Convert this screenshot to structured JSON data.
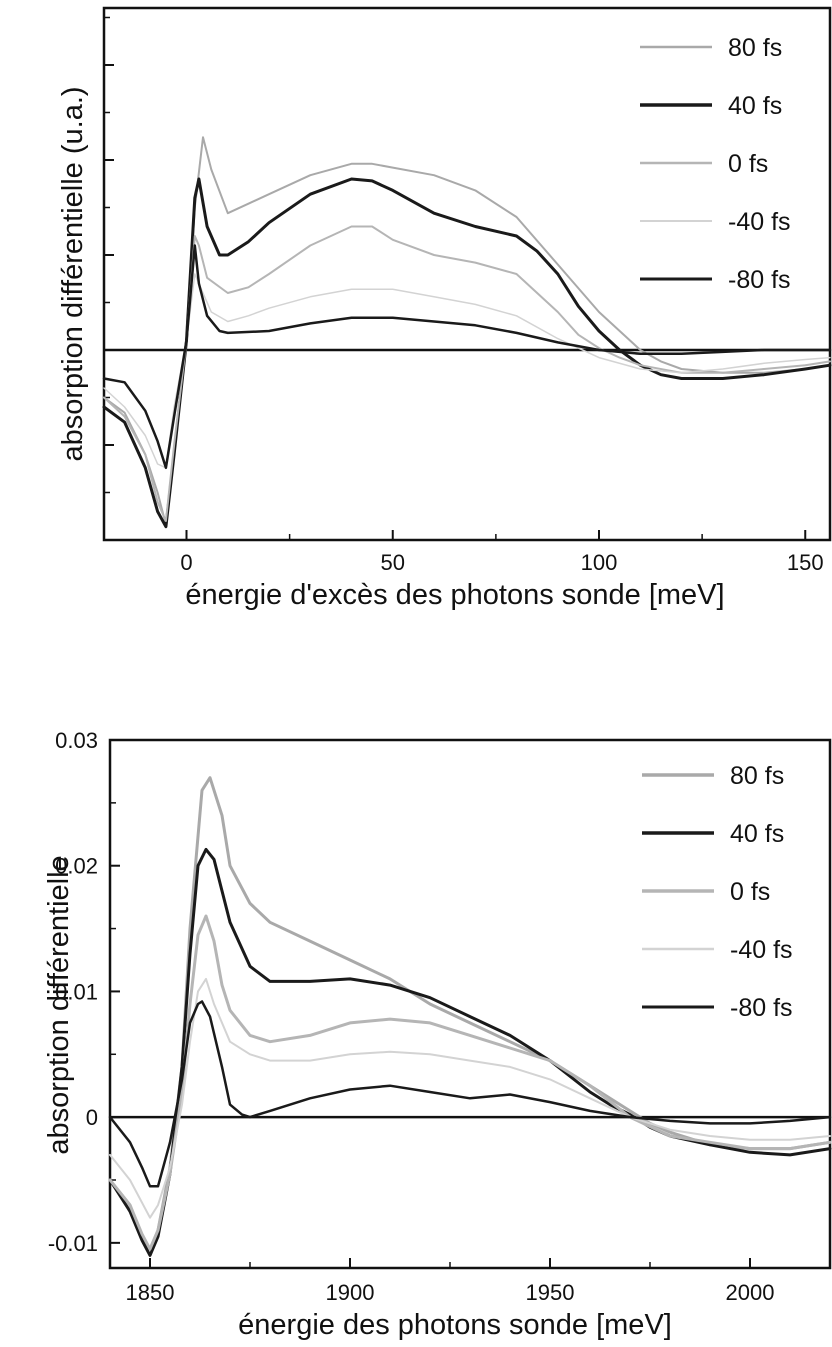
{
  "chart_data": [
    {
      "type": "line",
      "title": "",
      "xlabel": "énergie d'excès des photons sonde [meV]",
      "ylabel": "absorption différentielle (u.a.)",
      "xlim": [
        -20,
        156
      ],
      "ylim": [
        -1.0,
        1.8
      ],
      "x_ticks": [
        0,
        50,
        100,
        150
      ],
      "x_tick_labels": [
        "0",
        "50",
        "100",
        "150"
      ],
      "y_ticks": [
        -0.5,
        0,
        0.5,
        1.0,
        1.5
      ],
      "y_tick_labels": [
        "",
        "",
        "",
        "",
        ""
      ],
      "y_scale_note": "arbitrary units, no numeric tick labels",
      "zero_line": 0,
      "grid": false,
      "legend_position": "top-right",
      "series": [
        {
          "name": "80 fs",
          "color": "#a9a9a9",
          "width": 2,
          "x": [
            -20,
            -15,
            -10,
            -7,
            -5,
            -3,
            0,
            2,
            4,
            6,
            10,
            15,
            20,
            30,
            40,
            45,
            50,
            60,
            70,
            80,
            90,
            100,
            110,
            115,
            120,
            130,
            140,
            150,
            156
          ],
          "y": [
            -0.25,
            -0.33,
            -0.55,
            -0.75,
            -0.92,
            -0.55,
            0.05,
            0.75,
            1.12,
            0.95,
            0.72,
            0.77,
            0.82,
            0.92,
            0.98,
            0.98,
            0.96,
            0.92,
            0.84,
            0.7,
            0.45,
            0.2,
            0.0,
            -0.06,
            -0.1,
            -0.12,
            -0.12,
            -0.1,
            -0.08
          ]
        },
        {
          "name": "40 fs",
          "color": "#1a1a1a",
          "width": 3,
          "x": [
            -20,
            -15,
            -10,
            -7,
            -5,
            -3,
            0,
            2,
            3,
            5,
            8,
            10,
            15,
            20,
            30,
            40,
            45,
            50,
            60,
            70,
            80,
            85,
            90,
            95,
            100,
            105,
            110,
            115,
            120,
            130,
            140,
            150,
            156
          ],
          "y": [
            -0.3,
            -0.38,
            -0.62,
            -0.85,
            -0.93,
            -0.55,
            0.05,
            0.8,
            0.9,
            0.65,
            0.5,
            0.5,
            0.57,
            0.67,
            0.82,
            0.9,
            0.89,
            0.84,
            0.72,
            0.65,
            0.6,
            0.52,
            0.4,
            0.23,
            0.1,
            0.0,
            -0.08,
            -0.13,
            -0.15,
            -0.15,
            -0.13,
            -0.1,
            -0.08
          ]
        },
        {
          "name": "0 fs",
          "color": "#b5b5b5",
          "width": 2,
          "x": [
            -20,
            -15,
            -10,
            -7,
            -5,
            -3,
            0,
            2,
            3,
            5,
            10,
            15,
            20,
            30,
            40,
            45,
            50,
            60,
            70,
            80,
            90,
            95,
            100,
            105,
            110,
            120,
            130,
            140,
            150,
            156
          ],
          "y": [
            -0.25,
            -0.35,
            -0.55,
            -0.8,
            -0.9,
            -0.5,
            0.05,
            0.6,
            0.55,
            0.38,
            0.3,
            0.33,
            0.4,
            0.55,
            0.65,
            0.65,
            0.58,
            0.5,
            0.46,
            0.4,
            0.2,
            0.08,
            0.01,
            -0.04,
            -0.08,
            -0.12,
            -0.12,
            -0.1,
            -0.08,
            -0.06
          ]
        },
        {
          "name": "-40 fs",
          "color": "#d3d3d3",
          "width": 1.5,
          "x": [
            -20,
            -15,
            -10,
            -7,
            -5,
            -3,
            0,
            2,
            4,
            6,
            10,
            15,
            20,
            30,
            40,
            50,
            60,
            70,
            80,
            90,
            100,
            110,
            120,
            130,
            140,
            150,
            156
          ],
          "y": [
            -0.2,
            -0.3,
            -0.45,
            -0.6,
            -0.62,
            -0.3,
            0.05,
            0.4,
            0.3,
            0.2,
            0.15,
            0.18,
            0.22,
            0.28,
            0.32,
            0.32,
            0.28,
            0.24,
            0.18,
            0.06,
            -0.04,
            -0.1,
            -0.12,
            -0.1,
            -0.07,
            -0.05,
            -0.04
          ]
        },
        {
          "name": "-80 fs",
          "color": "#1a1a1a",
          "width": 2.5,
          "x": [
            -20,
            -15,
            -10,
            -7,
            -5,
            -3,
            0,
            2,
            3,
            5,
            8,
            10,
            20,
            30,
            40,
            50,
            60,
            70,
            80,
            90,
            100,
            110,
            120,
            130,
            140,
            150,
            156
          ],
          "y": [
            -0.15,
            -0.17,
            -0.32,
            -0.48,
            -0.62,
            -0.35,
            0.05,
            0.55,
            0.35,
            0.18,
            0.1,
            0.09,
            0.1,
            0.14,
            0.17,
            0.17,
            0.15,
            0.13,
            0.09,
            0.04,
            0.0,
            -0.02,
            -0.02,
            -0.01,
            0.0,
            0.0,
            0.0
          ]
        }
      ]
    },
    {
      "type": "line",
      "title": "",
      "xlabel": "énergie des photons sonde [meV]",
      "ylabel": "absorption différentielle",
      "xlim": [
        1840,
        2020
      ],
      "ylim": [
        -0.012,
        0.03
      ],
      "x_ticks": [
        1850,
        1900,
        1950,
        2000
      ],
      "x_tick_labels": [
        "1850",
        "1900",
        "1950",
        "2000"
      ],
      "y_ticks": [
        -0.01,
        0,
        0.01,
        0.02,
        0.03
      ],
      "y_tick_labels": [
        "-0.01",
        "0",
        "0.01",
        "0.02",
        "0.03"
      ],
      "zero_line": 0,
      "grid": false,
      "legend_position": "top-right",
      "series": [
        {
          "name": "80 fs",
          "color": "#a9a9a9",
          "width": 3,
          "x": [
            1840,
            1845,
            1848,
            1850,
            1852,
            1855,
            1858,
            1860,
            1863,
            1865,
            1868,
            1870,
            1875,
            1880,
            1890,
            1900,
            1910,
            1920,
            1930,
            1940,
            1950,
            1960,
            1965,
            1970,
            1975,
            1980,
            1990,
            2000,
            2010,
            2020
          ],
          "y": [
            -0.005,
            -0.007,
            -0.0095,
            -0.0105,
            -0.009,
            -0.004,
            0.004,
            0.015,
            0.026,
            0.027,
            0.024,
            0.02,
            0.017,
            0.0155,
            0.014,
            0.0125,
            0.011,
            0.009,
            0.0075,
            0.006,
            0.0045,
            0.0025,
            0.0015,
            0.0005,
            -0.0005,
            -0.0012,
            -0.0022,
            -0.0025,
            -0.0025,
            -0.002
          ]
        },
        {
          "name": "40 fs",
          "color": "#1a1a1a",
          "width": 3,
          "x": [
            1840,
            1845,
            1848,
            1850,
            1852,
            1855,
            1858,
            1860,
            1862,
            1864,
            1866,
            1868,
            1870,
            1875,
            1880,
            1890,
            1900,
            1910,
            1920,
            1930,
            1940,
            1950,
            1960,
            1965,
            1970,
            1975,
            1980,
            1990,
            2000,
            2010,
            2020
          ],
          "y": [
            -0.005,
            -0.0075,
            -0.0098,
            -0.011,
            -0.0095,
            -0.0045,
            0.004,
            0.013,
            0.02,
            0.0213,
            0.0205,
            0.018,
            0.0155,
            0.012,
            0.0108,
            0.0108,
            0.011,
            0.0105,
            0.0095,
            0.008,
            0.0065,
            0.0045,
            0.002,
            0.001,
            0.0002,
            -0.0008,
            -0.0015,
            -0.0022,
            -0.0028,
            -0.003,
            -0.0025
          ]
        },
        {
          "name": "0 fs",
          "color": "#b5b5b5",
          "width": 3,
          "x": [
            1840,
            1845,
            1848,
            1850,
            1852,
            1855,
            1858,
            1860,
            1862,
            1864,
            1866,
            1868,
            1870,
            1875,
            1880,
            1890,
            1900,
            1910,
            1920,
            1930,
            1940,
            1950,
            1960,
            1970,
            1980,
            1990,
            2000,
            2010,
            2020
          ],
          "y": [
            -0.005,
            -0.007,
            -0.0093,
            -0.0105,
            -0.009,
            -0.0045,
            0.002,
            0.009,
            0.0145,
            0.016,
            0.014,
            0.0105,
            0.0085,
            0.0065,
            0.006,
            0.0065,
            0.0075,
            0.0078,
            0.0075,
            0.0065,
            0.0055,
            0.0045,
            0.0025,
            0.0,
            -0.0015,
            -0.002,
            -0.0025,
            -0.0025,
            -0.002
          ]
        },
        {
          "name": "-40 fs",
          "color": "#d3d3d3",
          "width": 2,
          "x": [
            1840,
            1845,
            1850,
            1852,
            1855,
            1858,
            1860,
            1862,
            1864,
            1866,
            1870,
            1875,
            1880,
            1890,
            1900,
            1910,
            1920,
            1930,
            1940,
            1950,
            1960,
            1970,
            1980,
            1990,
            2000,
            2010,
            2020
          ],
          "y": [
            -0.003,
            -0.005,
            -0.008,
            -0.007,
            -0.004,
            0.001,
            0.006,
            0.01,
            0.011,
            0.009,
            0.006,
            0.005,
            0.0045,
            0.0045,
            0.005,
            0.0052,
            0.005,
            0.0045,
            0.004,
            0.003,
            0.0015,
            0.0,
            -0.001,
            -0.0015,
            -0.0018,
            -0.0018,
            -0.0015
          ]
        },
        {
          "name": "-80 fs",
          "color": "#1a1a1a",
          "width": 2.5,
          "x": [
            1840,
            1845,
            1848,
            1850,
            1852,
            1855,
            1858,
            1860,
            1862,
            1863,
            1865,
            1868,
            1870,
            1873,
            1875,
            1880,
            1890,
            1900,
            1910,
            1920,
            1930,
            1940,
            1950,
            1960,
            1970,
            1980,
            1990,
            2000,
            2010,
            2020
          ],
          "y": [
            0.0,
            -0.002,
            -0.004,
            -0.0055,
            -0.0055,
            -0.002,
            0.003,
            0.0075,
            0.009,
            0.0092,
            0.008,
            0.004,
            0.001,
            0.0002,
            0.0,
            0.0005,
            0.0015,
            0.0022,
            0.0025,
            0.002,
            0.0015,
            0.0018,
            0.0012,
            0.0005,
            0.0,
            -0.0003,
            -0.0005,
            -0.0005,
            -0.0003,
            0.0
          ]
        }
      ]
    }
  ]
}
